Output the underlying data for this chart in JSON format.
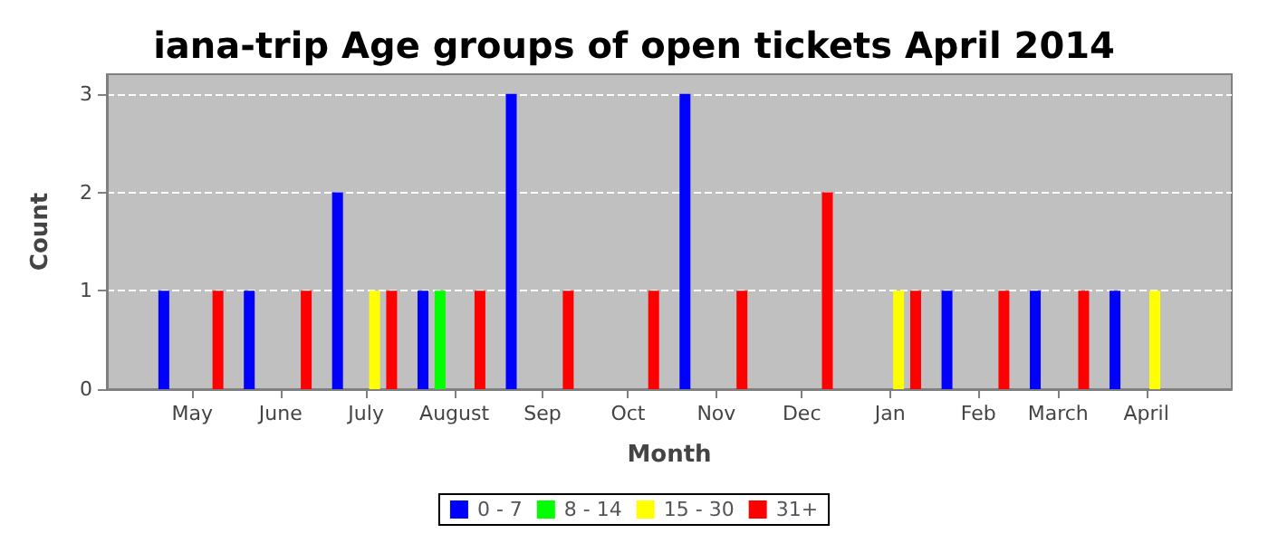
{
  "chart_data": {
    "type": "bar",
    "title": "iana-trip Age groups of open tickets April 2014",
    "xlabel": "Month",
    "ylabel": "Count",
    "xlim": [
      "2013-04-01",
      "2014-05-01"
    ],
    "xticks": [
      {
        "value": "2013-05-01",
        "label": "May"
      },
      {
        "value": "2013-06-01",
        "label": "June"
      },
      {
        "value": "2013-07-01",
        "label": "July"
      },
      {
        "value": "2013-08-01",
        "label": "August"
      },
      {
        "value": "2013-09-01",
        "label": "Sep"
      },
      {
        "value": "2013-10-01",
        "label": "Oct"
      },
      {
        "value": "2013-11-01",
        "label": "Nov"
      },
      {
        "value": "2013-12-01",
        "label": "Dec"
      },
      {
        "value": "2014-01-01",
        "label": "Jan"
      },
      {
        "value": "2014-02-01",
        "label": "Feb"
      },
      {
        "value": "2014-03-01",
        "label": "March"
      },
      {
        "value": "2014-04-01",
        "label": "April"
      }
    ],
    "ylim": [
      0,
      3.2
    ],
    "yticks": [
      0,
      1,
      2,
      3
    ],
    "grid": "y",
    "legend": "bottom",
    "series": [
      {
        "name": "0 - 7",
        "color": "#0000ff",
        "x": [
          "2013-04-21",
          "2013-05-21",
          "2013-06-21",
          "2013-07-21",
          "2013-08-21",
          "2013-10-21",
          "2014-01-21",
          "2014-02-21",
          "2014-03-21"
        ],
        "values": [
          1,
          1,
          2,
          1,
          3,
          3,
          1,
          1,
          1
        ]
      },
      {
        "name": "8 - 14",
        "color": "#00ff00",
        "x": [
          "2013-07-27"
        ],
        "values": [
          1
        ]
      },
      {
        "name": "15 - 30",
        "color": "#ffff00",
        "x": [
          "2013-07-04",
          "2014-01-04",
          "2014-04-04"
        ],
        "values": [
          1,
          1,
          1
        ]
      },
      {
        "name": "31+",
        "color": "#ff0000",
        "x": [
          "2013-05-10",
          "2013-06-10",
          "2013-07-10",
          "2013-08-10",
          "2013-09-10",
          "2013-10-10",
          "2013-11-10",
          "2013-12-10",
          "2014-01-10",
          "2014-02-10",
          "2014-03-10"
        ],
        "values": [
          1,
          1,
          1,
          1,
          1,
          1,
          1,
          2,
          1,
          1,
          1
        ]
      }
    ]
  }
}
